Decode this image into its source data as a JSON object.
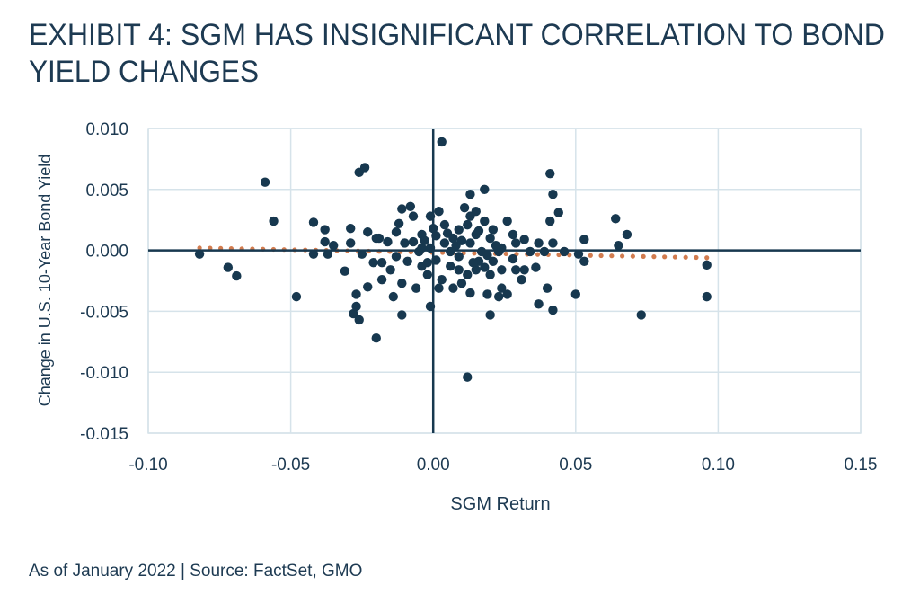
{
  "colors": {
    "title": "#1d3a52",
    "points": "#17384f",
    "trend": "#d27c4f",
    "grid": "#d6e3ea",
    "axis": "#17384f"
  },
  "chart_data": {
    "type": "scatter",
    "title_line1": "EXHIBIT 4: SGM HAS INSIGNIFICANT CORRELATION TO BOND",
    "title_line2": "YIELD CHANGES",
    "xlabel": "SGM Return",
    "ylabel": "Change in U.S. 10-Year Bond Yield",
    "xlim": [
      -0.1,
      0.15
    ],
    "ylim": [
      -0.015,
      0.01
    ],
    "xticks": [
      "-0.10",
      "-0.05",
      "0.00",
      "0.05",
      "0.10",
      "0.15"
    ],
    "yticks": [
      "0.010",
      "0.005",
      "0.000",
      "-0.005",
      "-0.010",
      "-0.015"
    ],
    "grid": true,
    "trendline": {
      "style": "dotted",
      "x": [
        -0.082,
        0.096
      ],
      "y": [
        0.0002,
        -0.0006
      ]
    },
    "points": [
      [
        -0.082,
        -0.0003
      ],
      [
        -0.072,
        -0.0014
      ],
      [
        -0.069,
        -0.0021
      ],
      [
        -0.059,
        0.0056
      ],
      [
        -0.056,
        0.0024
      ],
      [
        -0.048,
        -0.0038
      ],
      [
        -0.042,
        0.0023
      ],
      [
        -0.042,
        -0.0003
      ],
      [
        -0.038,
        0.0017
      ],
      [
        -0.038,
        0.0007
      ],
      [
        -0.037,
        -0.0003
      ],
      [
        -0.035,
        0.0004
      ],
      [
        -0.031,
        -0.0017
      ],
      [
        -0.029,
        0.0018
      ],
      [
        -0.029,
        0.0006
      ],
      [
        -0.026,
        0.0064
      ],
      [
        -0.024,
        0.0068
      ],
      [
        -0.028,
        -0.0052
      ],
      [
        -0.027,
        -0.0036
      ],
      [
        -0.027,
        -0.0046
      ],
      [
        -0.026,
        -0.0057
      ],
      [
        -0.025,
        -0.0003
      ],
      [
        -0.023,
        0.0015
      ],
      [
        -0.023,
        -0.003
      ],
      [
        -0.021,
        -0.001
      ],
      [
        -0.02,
        -0.0072
      ],
      [
        -0.019,
        0.001
      ],
      [
        -0.018,
        -0.001
      ],
      [
        -0.014,
        -0.0038
      ],
      [
        -0.012,
        0.0022
      ],
      [
        -0.011,
        -0.0027
      ],
      [
        -0.011,
        -0.0053
      ],
      [
        -0.011,
        0.0034
      ],
      [
        -0.008,
        0.0036
      ],
      [
        -0.007,
        0.0007
      ],
      [
        -0.006,
        -0.0031
      ],
      [
        -0.001,
        -0.0046
      ],
      [
        0.003,
        0.0089
      ],
      [
        0.012,
        -0.0104
      ],
      [
        0.013,
        0.0046
      ],
      [
        0.018,
        0.005
      ],
      [
        0.02,
        -0.0053
      ],
      [
        0.026,
        0.0024
      ],
      [
        0.041,
        0.0063
      ],
      [
        0.042,
        0.0046
      ],
      [
        0.041,
        0.0024
      ],
      [
        0.044,
        0.0031
      ],
      [
        0.042,
        -0.0049
      ],
      [
        0.04,
        -0.0031
      ],
      [
        0.037,
        -0.0044
      ],
      [
        0.05,
        -0.0036
      ],
      [
        0.053,
        -0.0009
      ],
      [
        0.053,
        0.0009
      ],
      [
        0.064,
        0.0026
      ],
      [
        0.065,
        0.0004
      ],
      [
        0.068,
        0.0013
      ],
      [
        0.073,
        -0.0053
      ],
      [
        0.096,
        -0.0012
      ],
      [
        0.096,
        -0.0038
      ],
      [
        0.046,
        -0.0001
      ],
      [
        0.051,
        -0.0003
      ],
      [
        0.034,
        -0.0001
      ],
      [
        0.032,
        0.0009
      ],
      [
        0.037,
        0.0006
      ],
      [
        0.036,
        -0.0014
      ],
      [
        0.029,
        -0.0016
      ],
      [
        0.026,
        -0.0036
      ],
      [
        0.023,
        -0.0038
      ],
      [
        0.019,
        -0.0036
      ],
      [
        0.016,
        -0.0009
      ],
      [
        0.015,
        -0.0016
      ],
      [
        0.012,
        -0.002
      ],
      [
        0.01,
        -0.0027
      ],
      [
        0.007,
        -0.0031
      ],
      [
        0.009,
        -0.0016
      ],
      [
        0.02,
        0.001
      ],
      [
        0.021,
        0.0017
      ],
      [
        0.024,
        0.0002
      ],
      [
        0.028,
        0.0013
      ],
      [
        0.029,
        0.0006
      ],
      [
        0.023,
        -0.0001
      ],
      [
        0.018,
        0.0024
      ],
      [
        0.015,
        0.0032
      ],
      [
        0.012,
        0.0021
      ],
      [
        0.009,
        0.0017
      ],
      [
        0.007,
        0.001
      ],
      [
        0.004,
        0.0021
      ],
      [
        0.002,
        0.0032
      ],
      [
        -0.001,
        0.0028
      ],
      [
        -0.004,
        0.0013
      ],
      [
        -0.005,
        -0.0001
      ],
      [
        -0.004,
        -0.0013
      ],
      [
        -0.002,
        -0.002
      ],
      [
        0.003,
        -0.0024
      ],
      [
        0.002,
        -0.0031
      ],
      [
        -0.009,
        -0.0009
      ],
      [
        -0.01,
        0.0006
      ],
      [
        -0.013,
        0.0015
      ],
      [
        -0.016,
        0.0007
      ],
      [
        -0.015,
        -0.0016
      ],
      [
        -0.018,
        -0.0024
      ],
      [
        -0.02,
        0.001
      ],
      [
        -0.013,
        -0.0005
      ],
      [
        0.006,
        -0.0001
      ],
      [
        0.009,
        -0.0005
      ],
      [
        0.013,
        0.0006
      ],
      [
        0.017,
        -0.0001
      ],
      [
        0.015,
        0.0013
      ],
      [
        0.024,
        -0.0016
      ],
      [
        0.032,
        -0.0016
      ],
      [
        0.024,
        -0.0031
      ],
      [
        0.031,
        -0.0024
      ],
      [
        0.004,
        0.0006
      ],
      [
        0.001,
        0.0012
      ],
      [
        -0.001,
        0.0002
      ],
      [
        -0.004,
        0.0002
      ],
      [
        -0.007,
        0.0028
      ],
      [
        0.011,
        0.0035
      ],
      [
        0.013,
        0.0028
      ],
      [
        0.006,
        -0.0013
      ],
      [
        0.02,
        -0.002
      ],
      [
        0.013,
        -0.0035
      ],
      [
        0.021,
        -0.0009
      ],
      [
        0.028,
        -0.0007
      ],
      [
        0.039,
        -0.0001
      ],
      [
        0.042,
        0.0006
      ],
      [
        0.0,
        0.0018
      ],
      [
        0.001,
        -0.0008
      ],
      [
        -0.003,
        0.0008
      ],
      [
        0.005,
        0.0014
      ],
      [
        0.008,
        0.0004
      ],
      [
        0.014,
        -0.001
      ],
      [
        0.018,
        -0.0014
      ],
      [
        0.022,
        0.0004
      ],
      [
        0.016,
        0.0016
      ],
      [
        -0.002,
        -0.001
      ],
      [
        0.01,
        0.0008
      ],
      [
        0.019,
        -0.0004
      ]
    ]
  },
  "footer": {
    "source": "As of January 2022 | Source: FactSet, GMO"
  }
}
